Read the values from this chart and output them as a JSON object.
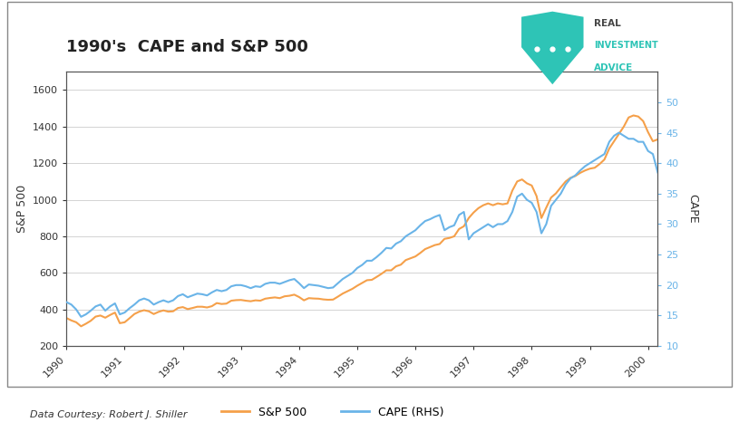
{
  "title": "1990's  CAPE and S&P 500",
  "ylabel_left": "S&P 500",
  "ylabel_right": "CAPE",
  "source_text": "Data Courtesy: Robert J. Shiller",
  "sp500_color": "#F5A04A",
  "cape_color": "#6AB4E8",
  "background_color": "#FFFFFF",
  "grid_color": "#CCCCCC",
  "ylim_left": [
    200,
    1700
  ],
  "ylim_right": [
    10,
    55
  ],
  "yticks_left": [
    200,
    400,
    600,
    800,
    1000,
    1200,
    1400,
    1600
  ],
  "yticks_right": [
    10,
    15,
    20,
    25,
    30,
    35,
    40,
    45,
    50
  ],
  "xtick_labels": [
    "1990",
    "1991",
    "1992",
    "1993",
    "1994",
    "1995",
    "1996",
    "1997",
    "1998",
    "1999",
    "2000"
  ],
  "shield_color": "#2EC4B6",
  "text_color_real": "#444444",
  "text_color_inv": "#2EC4B6",
  "sp500_data": [
    353,
    340,
    330,
    308,
    322,
    338,
    361,
    367,
    355,
    370,
    383,
    325,
    330,
    352,
    375,
    388,
    396,
    390,
    375,
    387,
    395,
    388,
    390,
    408,
    413,
    402,
    408,
    415,
    415,
    411,
    418,
    435,
    430,
    432,
    448,
    451,
    452,
    448,
    445,
    450,
    448,
    459,
    463,
    466,
    462,
    472,
    475,
    481,
    468,
    450,
    462,
    460,
    459,
    455,
    453,
    454,
    470,
    487,
    500,
    513,
    530,
    545,
    560,
    562,
    578,
    595,
    614,
    614,
    636,
    645,
    670,
    680,
    690,
    709,
    730,
    741,
    752,
    758,
    786,
    791,
    800,
    840,
    855,
    900,
    930,
    954,
    970,
    980,
    970,
    980,
    975,
    980,
    1050,
    1100,
    1111,
    1090,
    1078,
    1020,
    900,
    957,
    1012,
    1035,
    1068,
    1100,
    1120,
    1130,
    1147,
    1160,
    1170,
    1175,
    1195,
    1220,
    1280,
    1320,
    1360,
    1400,
    1450,
    1461,
    1455,
    1430,
    1370,
    1320,
    1330
  ],
  "cape_data": [
    17.2,
    16.8,
    16.0,
    14.8,
    15.2,
    15.8,
    16.5,
    16.8,
    15.8,
    16.5,
    17.0,
    15.2,
    15.5,
    16.2,
    16.8,
    17.5,
    17.8,
    17.5,
    16.8,
    17.2,
    17.5,
    17.2,
    17.5,
    18.2,
    18.5,
    18.0,
    18.3,
    18.6,
    18.5,
    18.3,
    18.8,
    19.2,
    19.0,
    19.2,
    19.8,
    20.0,
    20.0,
    19.8,
    19.5,
    19.8,
    19.7,
    20.2,
    20.4,
    20.4,
    20.2,
    20.5,
    20.8,
    21.0,
    20.3,
    19.5,
    20.1,
    20.0,
    19.9,
    19.7,
    19.5,
    19.6,
    20.3,
    21.0,
    21.5,
    22.0,
    22.8,
    23.3,
    24.0,
    24.0,
    24.6,
    25.3,
    26.1,
    26.0,
    26.8,
    27.2,
    28.0,
    28.5,
    29.0,
    29.8,
    30.5,
    30.8,
    31.2,
    31.5,
    29.0,
    29.5,
    29.8,
    31.5,
    32.0,
    27.5,
    28.5,
    29.0,
    29.5,
    30.0,
    29.5,
    30.0,
    30.0,
    30.5,
    32.0,
    34.5,
    35.0,
    34.0,
    33.5,
    32.0,
    28.5,
    30.0,
    33.0,
    34.0,
    35.0,
    36.5,
    37.5,
    38.0,
    38.8,
    39.5,
    40.0,
    40.5,
    41.0,
    41.5,
    43.5,
    44.5,
    45.0,
    44.5,
    44.0,
    44.0,
    43.5,
    43.5,
    42.0,
    41.5,
    38.5
  ]
}
